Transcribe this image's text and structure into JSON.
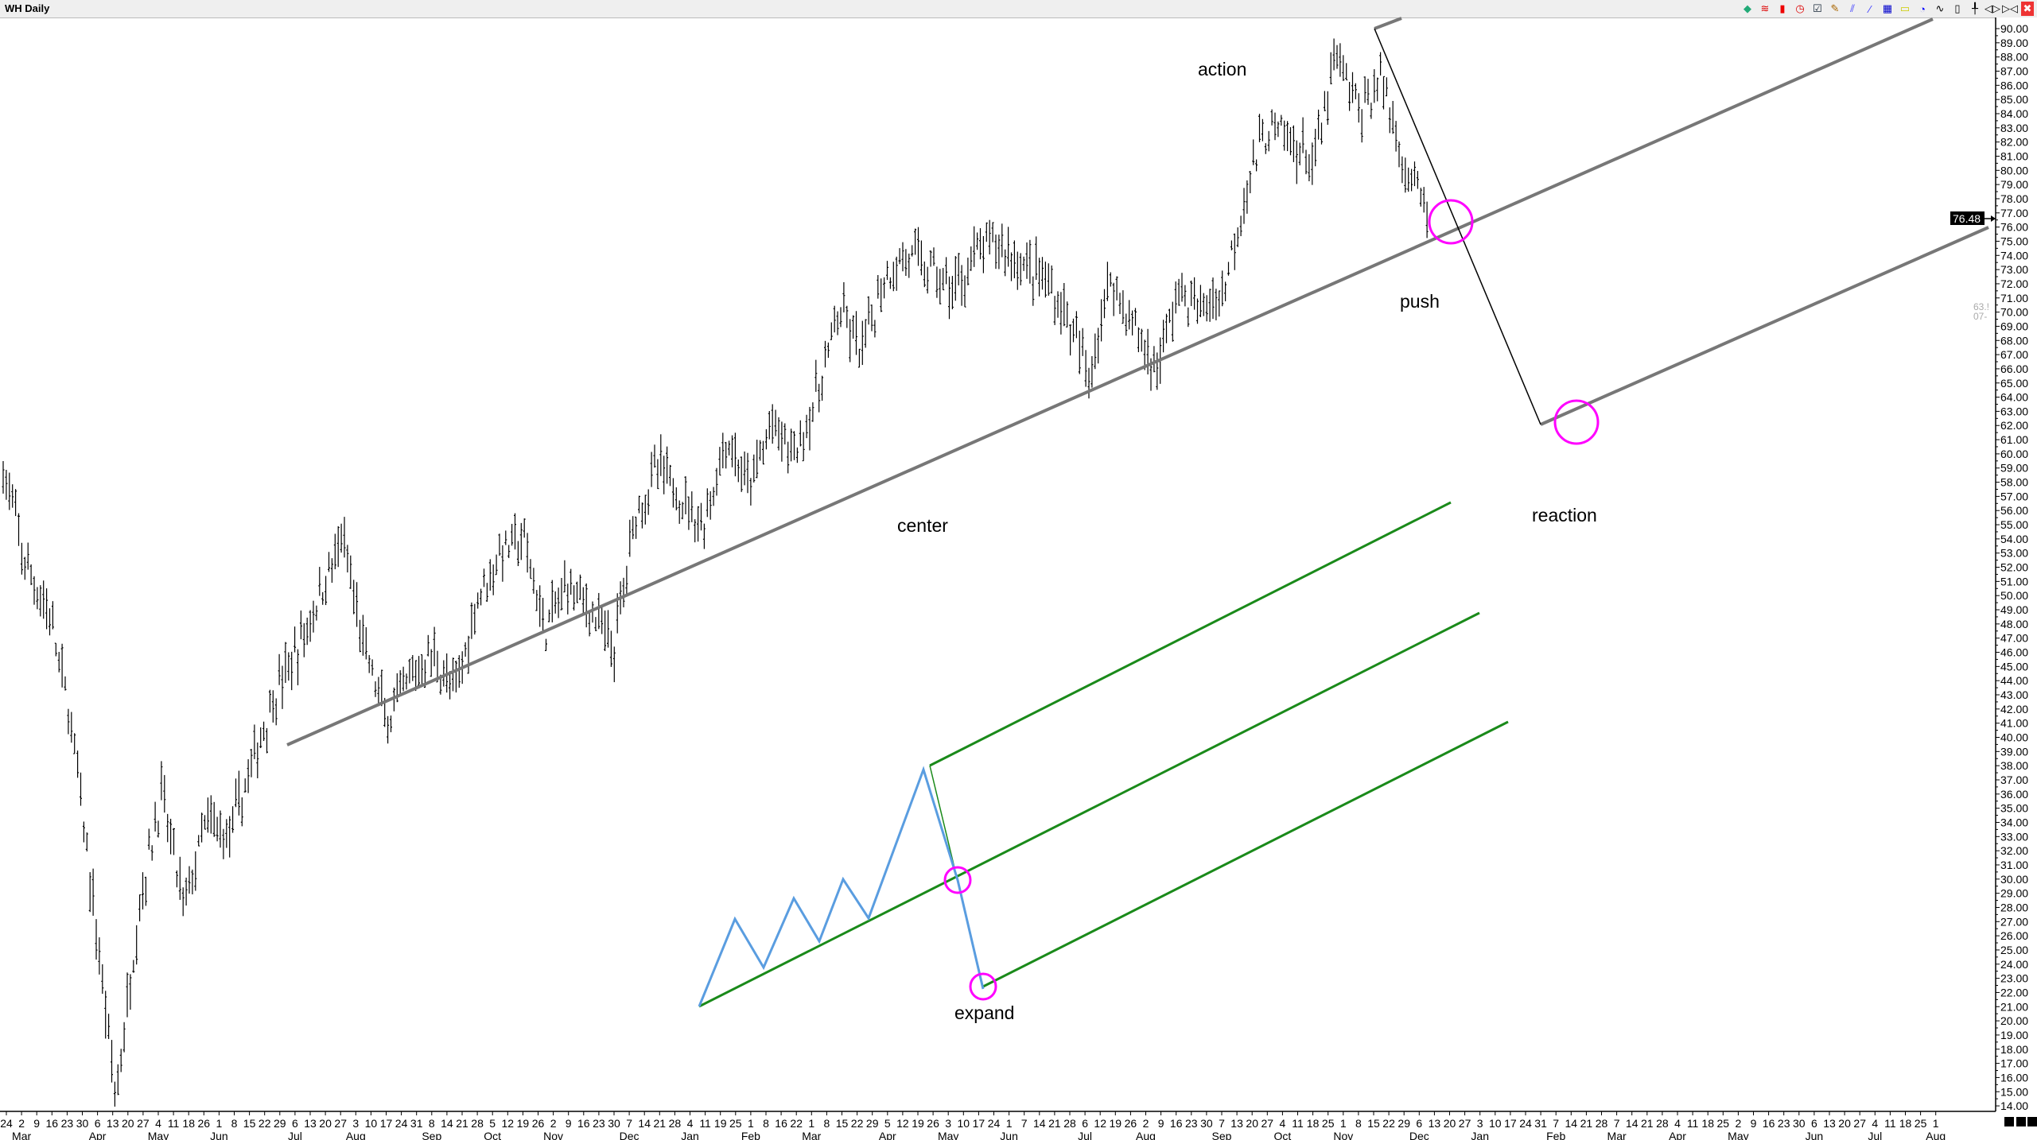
{
  "window": {
    "title": "WH Daily"
  },
  "toolbar": [
    {
      "name": "objects-icon",
      "glyph": "◆",
      "color": "#2a7"
    },
    {
      "name": "arcs-icon",
      "glyph": "≋",
      "color": "#d00"
    },
    {
      "name": "candle-icon",
      "glyph": "▮",
      "color": "#e00"
    },
    {
      "name": "clock-icon",
      "glyph": "◷",
      "color": "#d00"
    },
    {
      "name": "checklist-icon",
      "glyph": "☑",
      "color": "#123"
    },
    {
      "name": "pencil-icon",
      "glyph": "✎",
      "color": "#a60"
    },
    {
      "name": "pitchfork-icon",
      "glyph": "⫽",
      "color": "#33f"
    },
    {
      "name": "trendline-icon",
      "glyph": "⁄",
      "color": "#33f"
    },
    {
      "name": "grid-icon",
      "glyph": "▦",
      "color": "#00c"
    },
    {
      "name": "rectangle-icon",
      "glyph": "▭",
      "color": "#cc0"
    },
    {
      "name": "circle-icon",
      "glyph": "◔",
      "color": "#00f"
    },
    {
      "name": "line-chart-icon",
      "glyph": "∿",
      "color": "#000"
    },
    {
      "name": "candle-outline-icon",
      "glyph": "▯",
      "color": "#000"
    },
    {
      "name": "ohlc-bar-icon",
      "glyph": "╀",
      "color": "#000"
    },
    {
      "name": "expand-icon",
      "glyph": "◁▷",
      "color": "#000"
    },
    {
      "name": "compress-icon",
      "glyph": "▷◁",
      "color": "#000"
    },
    {
      "name": "close-icon",
      "glyph": "✖",
      "color": "#fff",
      "bg": "#e33"
    }
  ],
  "chart_data": {
    "type": "ohlc-bar",
    "symbol": "WH",
    "period": "Daily",
    "ylim": [
      14,
      90
    ],
    "y_ticks_step": 1,
    "last_price": "76.48",
    "side_note": [
      "63.!",
      "07-"
    ],
    "approx_closes": [
      59,
      52,
      49,
      41,
      28,
      14.5,
      28,
      36,
      28,
      34,
      33,
      38,
      43,
      46,
      50,
      54,
      46,
      41,
      44,
      46,
      43,
      50,
      53,
      54,
      47.5,
      51,
      49,
      46,
      56,
      59,
      57,
      55,
      61,
      57.5,
      62,
      60,
      64,
      70,
      67,
      72.5,
      74,
      73,
      71.5,
      74,
      75,
      73.5,
      72.5,
      70,
      65.5,
      72.5,
      69,
      66,
      71.5,
      70,
      71.5,
      79,
      83,
      82,
      80.5,
      88,
      84,
      86.5,
      80.5,
      77
    ],
    "x_labels": [
      "24",
      "2",
      "9",
      "16",
      "23",
      "30",
      "6",
      "13",
      "20",
      "27",
      "4",
      "11",
      "18",
      "26",
      "1",
      "8",
      "15",
      "22",
      "29",
      "6",
      "13",
      "20",
      "27",
      "3",
      "10",
      "17",
      "24",
      "31",
      "8",
      "14",
      "21",
      "28",
      "5",
      "12",
      "19",
      "26",
      "2",
      "9",
      "16",
      "23",
      "30",
      "7",
      "14",
      "21",
      "28",
      "4",
      "11",
      "19",
      "25",
      "1",
      "8",
      "16",
      "22",
      "1",
      "8",
      "15",
      "22",
      "29",
      "5",
      "12",
      "19",
      "26",
      "3",
      "10",
      "17",
      "24",
      "1",
      "7",
      "14",
      "21",
      "28",
      "6",
      "12",
      "19",
      "26",
      "2",
      "9",
      "16",
      "23",
      "30",
      "7",
      "13",
      "20",
      "27",
      "4",
      "11",
      "18",
      "25",
      "1",
      "8",
      "15",
      "22",
      "29",
      "6",
      "13",
      "20",
      "27",
      "3",
      "10",
      "17",
      "24",
      "31",
      "7",
      "14",
      "21",
      "28",
      "7",
      "14",
      "21",
      "28",
      "4",
      "11",
      "18",
      "25",
      "2",
      "9",
      "16",
      "23",
      "30",
      "6",
      "13",
      "20",
      "27",
      "4",
      "11",
      "18",
      "25",
      "1"
    ],
    "month_labels": [
      {
        "at": 1,
        "text": "Mar"
      },
      {
        "at": 6,
        "text": "Apr"
      },
      {
        "at": 10,
        "text": "May"
      },
      {
        "at": 14,
        "text": "Jun"
      },
      {
        "at": 19,
        "text": "Jul"
      },
      {
        "at": 23,
        "text": "Aug"
      },
      {
        "at": 28,
        "text": "Sep"
      },
      {
        "at": 32,
        "text": "Oct"
      },
      {
        "at": 36,
        "text": "Nov"
      },
      {
        "at": 41,
        "text": "Dec"
      },
      {
        "at": 45,
        "text": "Jan"
      },
      {
        "at": 49,
        "text": "Feb"
      },
      {
        "at": 53,
        "text": "Mar"
      },
      {
        "at": 58,
        "text": "Apr"
      },
      {
        "at": 62,
        "text": "May"
      },
      {
        "at": 66,
        "text": "Jun"
      },
      {
        "at": 71,
        "text": "Jul"
      },
      {
        "at": 75,
        "text": "Aug"
      },
      {
        "at": 80,
        "text": "Sep"
      },
      {
        "at": 84,
        "text": "Oct"
      },
      {
        "at": 88,
        "text": "Nov"
      },
      {
        "at": 93,
        "text": "Dec"
      },
      {
        "at": 97,
        "text": "Jan"
      },
      {
        "at": 102,
        "text": "Feb"
      },
      {
        "at": 106,
        "text": "Mar"
      },
      {
        "at": 110,
        "text": "Apr"
      },
      {
        "at": 114,
        "text": "May"
      },
      {
        "at": 119,
        "text": "Jun"
      },
      {
        "at": 123,
        "text": "Jul"
      },
      {
        "at": 127,
        "text": "Aug"
      }
    ],
    "annotations": {
      "action": "action",
      "push": "push",
      "center": "center",
      "reaction": "reaction",
      "expand": "expand"
    },
    "colors": {
      "bars": "#000000",
      "channel": "#777777",
      "green": "#1a8a1a",
      "zigzag": "#5a9de0",
      "circle": "#ff00ff"
    }
  }
}
